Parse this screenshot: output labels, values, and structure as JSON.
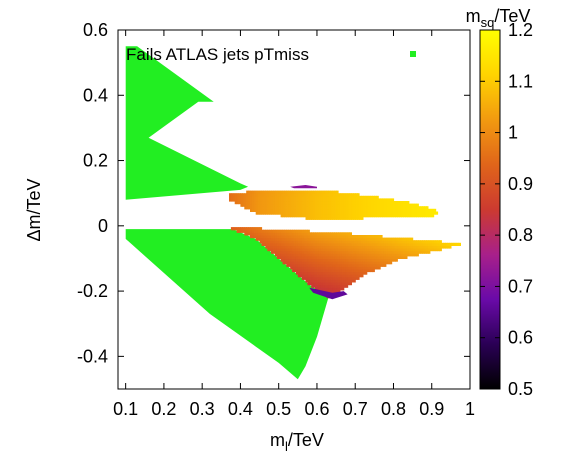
{
  "chart_data": {
    "type": "heatmap",
    "title": "",
    "xlabel_main": "m",
    "xlabel_sub": "l",
    "xlabel_unit": "/TeV",
    "ylabel": "Δm/TeV",
    "colorbar_label_main": "m",
    "colorbar_label_sub": "sq",
    "colorbar_label_unit": "/TeV",
    "xlim": [
      0.08,
      1.0
    ],
    "ylim": [
      -0.5,
      0.6
    ],
    "zlim": [
      0.5,
      1.2
    ],
    "x_ticks": [
      "0.1",
      "0.2",
      "0.3",
      "0.4",
      "0.5",
      "0.6",
      "0.7",
      "0.8",
      "0.9",
      "1"
    ],
    "x_tick_values": [
      0.1,
      0.2,
      0.3,
      0.4,
      0.5,
      0.6,
      0.7,
      0.8,
      0.9,
      1.0
    ],
    "y_ticks": [
      "-0.4",
      "-0.2",
      "0",
      "0.2",
      "0.4",
      "0.6"
    ],
    "y_tick_values": [
      -0.4,
      -0.2,
      0.0,
      0.2,
      0.4,
      0.6
    ],
    "cb_ticks": [
      "0.5",
      "0.6",
      "0.7",
      "0.8",
      "0.9",
      "1",
      "1.1",
      "1.2"
    ],
    "cb_tick_values": [
      0.5,
      0.6,
      0.7,
      0.8,
      0.9,
      1.0,
      1.1,
      1.2
    ],
    "legend": [
      {
        "name": "Fails ATLAS jets pTmiss",
        "color": "#22ee22"
      }
    ],
    "fail_color": "#22ee22",
    "fail_regions": [
      [
        [
          0.1,
          0.55
        ],
        [
          0.13,
          0.55
        ],
        [
          0.33,
          0.38
        ],
        [
          0.29,
          0.38
        ],
        [
          0.16,
          0.27
        ],
        [
          0.4,
          0.13
        ],
        [
          0.42,
          0.12
        ],
        [
          0.4,
          0.11
        ],
        [
          0.1,
          0.08
        ]
      ],
      [
        [
          0.1,
          -0.01
        ],
        [
          0.38,
          -0.01
        ],
        [
          0.44,
          -0.04
        ],
        [
          0.52,
          -0.12
        ],
        [
          0.58,
          -0.18
        ],
        [
          0.62,
          -0.21
        ],
        [
          0.63,
          -0.22
        ],
        [
          0.6,
          -0.34
        ],
        [
          0.57,
          -0.43
        ],
        [
          0.55,
          -0.47
        ],
        [
          0.5,
          -0.42
        ],
        [
          0.32,
          -0.27
        ],
        [
          0.1,
          -0.04
        ]
      ]
    ],
    "mass_regions": [
      {
        "polygon": [
          [
            0.37,
            0.1
          ],
          [
            0.48,
            0.11
          ],
          [
            0.56,
            0.11
          ],
          [
            0.65,
            0.105
          ],
          [
            0.75,
            0.09
          ],
          [
            0.85,
            0.07
          ],
          [
            0.92,
            0.045
          ],
          [
            0.9,
            0.03
          ],
          [
            0.75,
            0.025
          ],
          [
            0.6,
            0.02
          ],
          [
            0.44,
            0.04
          ],
          [
            0.37,
            0.08
          ]
        ],
        "x_z": [
          [
            0.37,
            0.95
          ],
          [
            0.45,
            1.02
          ],
          [
            0.6,
            1.08
          ],
          [
            0.75,
            1.12
          ],
          [
            0.92,
            1.16
          ]
        ],
        "y_gradient": 0.25
      },
      {
        "polygon": [
          [
            0.35,
            0.0
          ],
          [
            0.48,
            -0.01
          ],
          [
            0.65,
            -0.02
          ],
          [
            0.8,
            -0.035
          ],
          [
            0.9,
            -0.045
          ],
          [
            0.98,
            -0.055
          ],
          [
            0.93,
            -0.07
          ],
          [
            0.82,
            -0.1
          ],
          [
            0.72,
            -0.15
          ],
          [
            0.66,
            -0.2
          ],
          [
            0.63,
            -0.22
          ],
          [
            0.58,
            -0.18
          ],
          [
            0.52,
            -0.12
          ],
          [
            0.44,
            -0.04
          ],
          [
            0.38,
            -0.01
          ]
        ],
        "x_z": [
          [
            0.35,
            0.92
          ],
          [
            0.45,
            0.98
          ],
          [
            0.6,
            1.05
          ],
          [
            0.75,
            1.1
          ],
          [
            0.9,
            1.15
          ],
          [
            0.98,
            1.18
          ]
        ],
        "y_gradient": 1.1
      }
    ],
    "low_mass_edge": [
      [
        0.53,
        0.12
      ],
      [
        0.57,
        0.125
      ],
      [
        0.6,
        0.12
      ],
      [
        0.6,
        0.115
      ],
      [
        0.54,
        0.115
      ]
    ],
    "bottom_edge_dark": [
      [
        0.58,
        -0.19
      ],
      [
        0.64,
        -0.205
      ],
      [
        0.67,
        -0.2
      ],
      [
        0.68,
        -0.21
      ],
      [
        0.64,
        -0.225
      ],
      [
        0.59,
        -0.205
      ]
    ],
    "colormap": [
      "#000000",
      "#2a0055",
      "#6a0aa8",
      "#a8208a",
      "#cc3a30",
      "#e0651a",
      "#f29a10",
      "#ffd400",
      "#ffff00"
    ]
  }
}
